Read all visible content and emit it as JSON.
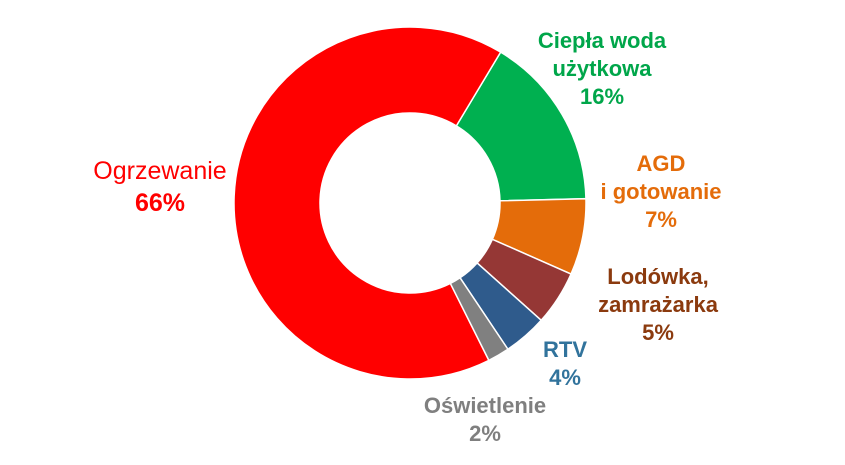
{
  "chart_data": {
    "type": "pie",
    "donut": true,
    "title": "",
    "slices": [
      {
        "label_lines": [
          "Ciepła woda",
          "użytkowa"
        ],
        "value": 16,
        "value_label": "16%",
        "color": "#00b050",
        "label_color": "#00a64a"
      },
      {
        "label_lines": [
          "AGD",
          "i gotowanie"
        ],
        "value": 7,
        "value_label": "7%",
        "color": "#e46c0a",
        "label_color": "#e46c0a"
      },
      {
        "label_lines": [
          "Lodówka,",
          "zamrażarka"
        ],
        "value": 5,
        "value_label": "5%",
        "color": "#953735",
        "label_color": "#8b3a0e"
      },
      {
        "label_lines": [
          "RTV"
        ],
        "value": 4,
        "value_label": "4%",
        "color": "#2f5b8c",
        "label_color": "#31739c"
      },
      {
        "label_lines": [
          "Oświetlenie"
        ],
        "value": 2,
        "value_label": "2%",
        "color": "#808080",
        "label_color": "#7f7f7f"
      },
      {
        "label_lines": [
          "Ogrzewanie"
        ],
        "value": 66,
        "value_label": "66%",
        "color": "#ff0000",
        "label_color": "#ff0000"
      }
    ]
  }
}
